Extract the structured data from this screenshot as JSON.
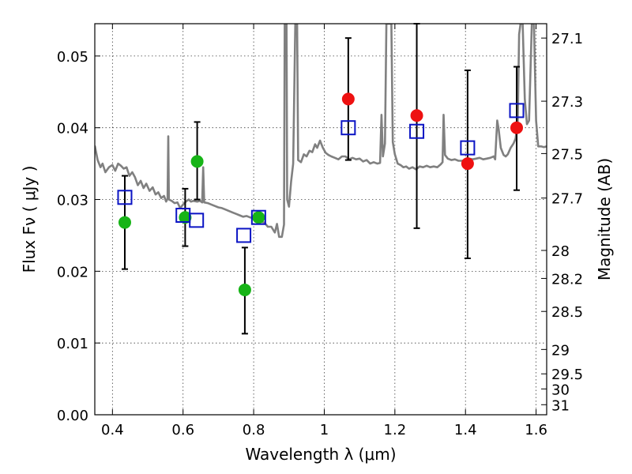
{
  "chart_data": {
    "type": "scatter",
    "xlabel": "Wavelength  λ (μm)",
    "ylabel": "Flux  Fν  ( μJy )",
    "ylabel_right": "Magnitude (AB)",
    "xlim": [
      0.35,
      1.63
    ],
    "ylim": [
      0.0,
      0.0545
    ],
    "grid": true,
    "x_ticks": [
      0.4,
      0.6,
      0.8,
      1.0,
      1.2,
      1.4,
      1.6
    ],
    "x_tick_labels": [
      "0.4",
      "0.6",
      "0.8",
      "1",
      "1.2",
      "1.4",
      "1.6"
    ],
    "y_ticks": [
      0.0,
      0.01,
      0.02,
      0.03,
      0.04,
      0.05
    ],
    "y_tick_labels": [
      "0.00",
      "0.01",
      "0.02",
      "0.03",
      "0.04",
      "0.05"
    ],
    "right_ticks": [
      {
        "label": "27.1",
        "flux": 0.0525
      },
      {
        "label": "27.3",
        "flux": 0.0437
      },
      {
        "label": "27.5",
        "flux": 0.0364
      },
      {
        "label": "27.7",
        "flux": 0.0302
      },
      {
        "label": "28",
        "flux": 0.0229
      },
      {
        "label": "28.2",
        "flux": 0.019
      },
      {
        "label": "28.5",
        "flux": 0.0144
      },
      {
        "label": "29",
        "flux": 0.0091
      },
      {
        "label": "29.5",
        "flux": 0.0057
      },
      {
        "label": "30",
        "flux": 0.0036
      },
      {
        "label": "31",
        "flux": 0.0014
      }
    ],
    "colors": {
      "green": "#17b417",
      "red": "#ee1111",
      "blue": "#0b14c4",
      "spectrum": "#808080"
    },
    "series": [
      {
        "marker": "circle",
        "color": "green",
        "points": [
          {
            "x": 0.435,
            "y": 0.0268,
            "err": [
              0.0203,
              0.0333
            ]
          },
          {
            "x": 0.606,
            "y": 0.0275,
            "err": [
              0.0235,
              0.0315
            ]
          },
          {
            "x": 0.64,
            "y": 0.0353,
            "err": [
              0.03,
              0.0408
            ]
          },
          {
            "x": 0.775,
            "y": 0.0174,
            "err": [
              0.0113,
              0.0233
            ]
          },
          {
            "x": 0.814,
            "y": 0.0275
          }
        ]
      },
      {
        "marker": "circle",
        "color": "red",
        "points": [
          {
            "x": 1.068,
            "y": 0.044,
            "err": [
              0.0355,
              0.0525
            ]
          },
          {
            "x": 1.262,
            "y": 0.0417,
            "err": [
              0.026,
              0.0545
            ]
          },
          {
            "x": 1.406,
            "y": 0.035,
            "err": [
              0.0218,
              0.048
            ]
          },
          {
            "x": 1.545,
            "y": 0.04,
            "err": [
              0.0313,
              0.0485
            ]
          }
        ]
      },
      {
        "marker": "square",
        "color": "blue",
        "points": [
          {
            "x": 0.435,
            "y": 0.0303
          },
          {
            "x": 0.6,
            "y": 0.0278
          },
          {
            "x": 0.638,
            "y": 0.0271
          },
          {
            "x": 0.772,
            "y": 0.025
          },
          {
            "x": 0.814,
            "y": 0.0275
          },
          {
            "x": 1.068,
            "y": 0.04
          },
          {
            "x": 1.262,
            "y": 0.0395
          },
          {
            "x": 1.406,
            "y": 0.0372
          },
          {
            "x": 1.545,
            "y": 0.0424
          }
        ]
      }
    ],
    "spectrum": {
      "color": "spectrum",
      "points": [
        [
          0.35,
          0.0375
        ],
        [
          0.358,
          0.0355
        ],
        [
          0.366,
          0.0345
        ],
        [
          0.372,
          0.035
        ],
        [
          0.38,
          0.0338
        ],
        [
          0.39,
          0.0345
        ],
        [
          0.4,
          0.0348
        ],
        [
          0.408,
          0.034
        ],
        [
          0.416,
          0.035
        ],
        [
          0.424,
          0.0347
        ],
        [
          0.432,
          0.0343
        ],
        [
          0.44,
          0.0345
        ],
        [
          0.448,
          0.0333
        ],
        [
          0.456,
          0.0338
        ],
        [
          0.464,
          0.0331
        ],
        [
          0.472,
          0.032
        ],
        [
          0.48,
          0.0326
        ],
        [
          0.488,
          0.0316
        ],
        [
          0.496,
          0.0322
        ],
        [
          0.505,
          0.0312
        ],
        [
          0.514,
          0.0317
        ],
        [
          0.522,
          0.0307
        ],
        [
          0.53,
          0.031
        ],
        [
          0.538,
          0.0302
        ],
        [
          0.546,
          0.0305
        ],
        [
          0.552,
          0.0297
        ],
        [
          0.556,
          0.0301
        ],
        [
          0.558,
          0.0388
        ],
        [
          0.56,
          0.03
        ],
        [
          0.568,
          0.0298
        ],
        [
          0.576,
          0.0295
        ],
        [
          0.584,
          0.0296
        ],
        [
          0.592,
          0.0288
        ],
        [
          0.6,
          0.0293
        ],
        [
          0.608,
          0.0297
        ],
        [
          0.616,
          0.03
        ],
        [
          0.622,
          0.0297
        ],
        [
          0.63,
          0.0298
        ],
        [
          0.64,
          0.0297
        ],
        [
          0.648,
          0.0298
        ],
        [
          0.654,
          0.0296
        ],
        [
          0.657,
          0.0345
        ],
        [
          0.66,
          0.0296
        ],
        [
          0.67,
          0.0295
        ],
        [
          0.68,
          0.0293
        ],
        [
          0.69,
          0.0291
        ],
        [
          0.7,
          0.0289
        ],
        [
          0.71,
          0.0288
        ],
        [
          0.72,
          0.0286
        ],
        [
          0.73,
          0.0284
        ],
        [
          0.74,
          0.0282
        ],
        [
          0.75,
          0.028
        ],
        [
          0.76,
          0.0278
        ],
        [
          0.77,
          0.0276
        ],
        [
          0.78,
          0.0277
        ],
        [
          0.79,
          0.0275
        ],
        [
          0.8,
          0.0274
        ],
        [
          0.81,
          0.0271
        ],
        [
          0.82,
          0.0269
        ],
        [
          0.83,
          0.0268
        ],
        [
          0.84,
          0.0262
        ],
        [
          0.85,
          0.0262
        ],
        [
          0.86,
          0.0254
        ],
        [
          0.866,
          0.0266
        ],
        [
          0.872,
          0.0248
        ],
        [
          0.88,
          0.0248
        ],
        [
          0.886,
          0.0265
        ],
        [
          0.888,
          0.0545
        ],
        [
          0.893,
          0.0545
        ],
        [
          0.895,
          0.03
        ],
        [
          0.9,
          0.029
        ],
        [
          0.906,
          0.0325
        ],
        [
          0.912,
          0.035
        ],
        [
          0.918,
          0.0545
        ],
        [
          0.923,
          0.0545
        ],
        [
          0.926,
          0.0355
        ],
        [
          0.934,
          0.0352
        ],
        [
          0.942,
          0.0363
        ],
        [
          0.95,
          0.036
        ],
        [
          0.958,
          0.0368
        ],
        [
          0.966,
          0.0366
        ],
        [
          0.974,
          0.0377
        ],
        [
          0.98,
          0.0372
        ],
        [
          0.988,
          0.0382
        ],
        [
          0.996,
          0.0372
        ],
        [
          1.004,
          0.0365
        ],
        [
          1.012,
          0.0362
        ],
        [
          1.02,
          0.036
        ],
        [
          1.03,
          0.0358
        ],
        [
          1.04,
          0.0356
        ],
        [
          1.05,
          0.036
        ],
        [
          1.06,
          0.036
        ],
        [
          1.07,
          0.0356
        ],
        [
          1.08,
          0.0358
        ],
        [
          1.09,
          0.0356
        ],
        [
          1.1,
          0.0357
        ],
        [
          1.11,
          0.0353
        ],
        [
          1.12,
          0.0355
        ],
        [
          1.13,
          0.035
        ],
        [
          1.14,
          0.0352
        ],
        [
          1.15,
          0.035
        ],
        [
          1.158,
          0.0351
        ],
        [
          1.162,
          0.0418
        ],
        [
          1.166,
          0.036
        ],
        [
          1.172,
          0.0378
        ],
        [
          1.176,
          0.0545
        ],
        [
          1.19,
          0.0545
        ],
        [
          1.194,
          0.038
        ],
        [
          1.2,
          0.0363
        ],
        [
          1.208,
          0.035
        ],
        [
          1.216,
          0.0348
        ],
        [
          1.224,
          0.0345
        ],
        [
          1.232,
          0.0346
        ],
        [
          1.24,
          0.0343
        ],
        [
          1.25,
          0.0345
        ],
        [
          1.26,
          0.0342
        ],
        [
          1.27,
          0.0346
        ],
        [
          1.28,
          0.0345
        ],
        [
          1.29,
          0.0347
        ],
        [
          1.3,
          0.0345
        ],
        [
          1.31,
          0.0346
        ],
        [
          1.32,
          0.0345
        ],
        [
          1.33,
          0.0349
        ],
        [
          1.335,
          0.0352
        ],
        [
          1.338,
          0.0418
        ],
        [
          1.342,
          0.0362
        ],
        [
          1.35,
          0.0357
        ],
        [
          1.36,
          0.0355
        ],
        [
          1.37,
          0.0356
        ],
        [
          1.38,
          0.0354
        ],
        [
          1.39,
          0.0354
        ],
        [
          1.4,
          0.0355
        ],
        [
          1.41,
          0.0357
        ],
        [
          1.42,
          0.0356
        ],
        [
          1.43,
          0.0357
        ],
        [
          1.44,
          0.0358
        ],
        [
          1.45,
          0.0356
        ],
        [
          1.46,
          0.0357
        ],
        [
          1.47,
          0.0358
        ],
        [
          1.48,
          0.036
        ],
        [
          1.484,
          0.0356
        ],
        [
          1.49,
          0.041
        ],
        [
          1.494,
          0.0398
        ],
        [
          1.5,
          0.0372
        ],
        [
          1.508,
          0.0362
        ],
        [
          1.514,
          0.036
        ],
        [
          1.52,
          0.0363
        ],
        [
          1.528,
          0.0372
        ],
        [
          1.536,
          0.0378
        ],
        [
          1.542,
          0.0385
        ],
        [
          1.548,
          0.041
        ],
        [
          1.552,
          0.053
        ],
        [
          1.556,
          0.0545
        ],
        [
          1.562,
          0.0545
        ],
        [
          1.568,
          0.044
        ],
        [
          1.574,
          0.0405
        ],
        [
          1.58,
          0.041
        ],
        [
          1.588,
          0.0545
        ],
        [
          1.594,
          0.0545
        ],
        [
          1.6,
          0.041
        ],
        [
          1.606,
          0.0374
        ],
        [
          1.614,
          0.0374
        ],
        [
          1.622,
          0.0373
        ],
        [
          1.63,
          0.0374
        ]
      ]
    }
  }
}
